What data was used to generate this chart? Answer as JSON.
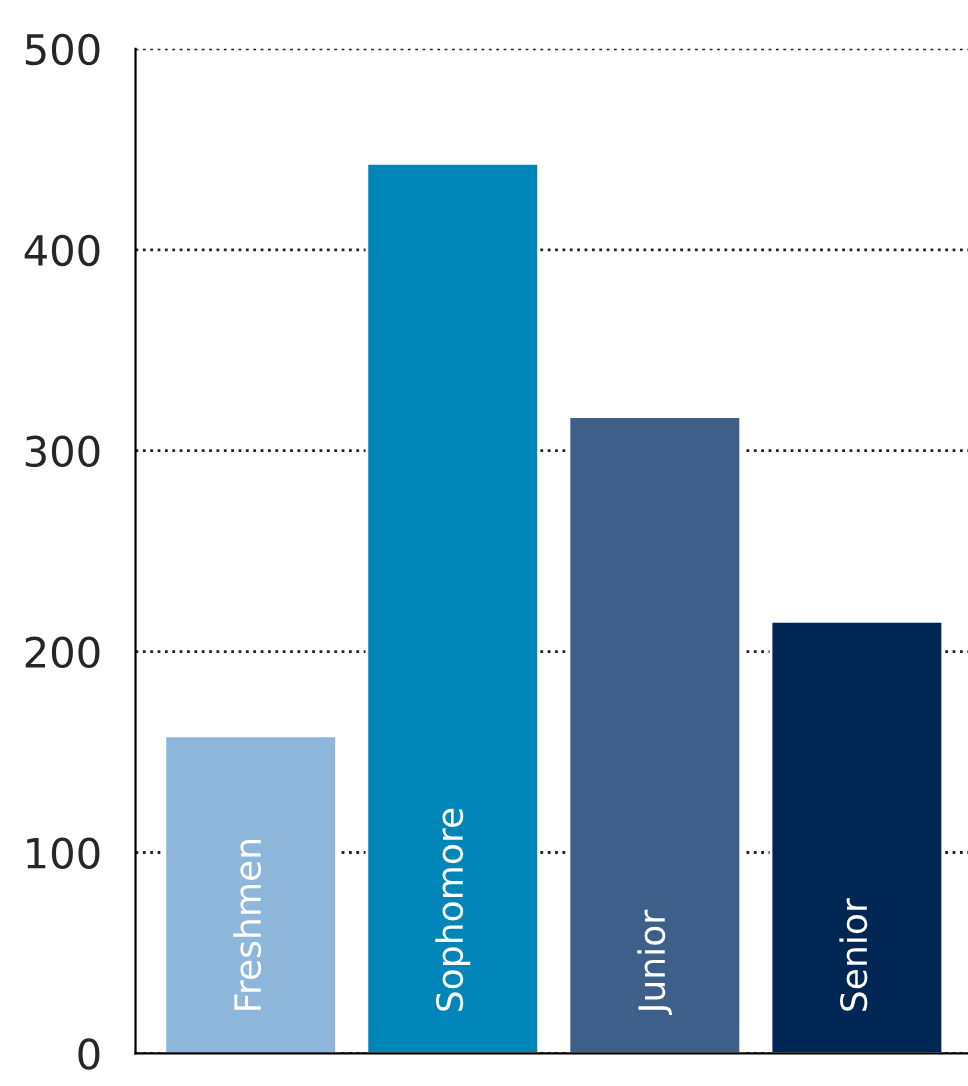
{
  "chart_data": {
    "type": "bar",
    "categories": [
      "Freshmen",
      "Sophomore",
      "Junior",
      "Senior"
    ],
    "values": [
      158,
      443,
      317,
      215
    ],
    "colors": [
      "#8db6da",
      "#0085b8",
      "#3f5f8b",
      "#002654"
    ],
    "ylim": [
      0,
      500
    ],
    "yticks": [
      0,
      100,
      200,
      300,
      400,
      500
    ],
    "grid": "y",
    "line_style": "dotted"
  }
}
